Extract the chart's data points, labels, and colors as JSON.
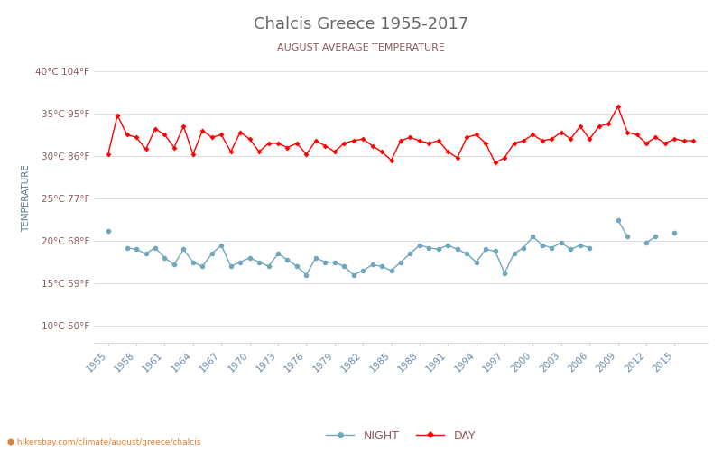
{
  "title": "Chalcis Greece 1955-2017",
  "subtitle": "AUGUST AVERAGE TEMPERATURE",
  "ylabel": "TEMPERATURE",
  "xlabel_url": "hikersbay.com/climate/august/greece/chalcis",
  "years": [
    1955,
    1956,
    1957,
    1958,
    1959,
    1960,
    1961,
    1962,
    1963,
    1964,
    1965,
    1966,
    1967,
    1968,
    1969,
    1970,
    1971,
    1972,
    1973,
    1974,
    1975,
    1976,
    1977,
    1978,
    1979,
    1980,
    1981,
    1982,
    1983,
    1984,
    1985,
    1986,
    1987,
    1988,
    1989,
    1990,
    1991,
    1992,
    1993,
    1994,
    1995,
    1996,
    1997,
    1998,
    1999,
    2000,
    2001,
    2002,
    2003,
    2004,
    2005,
    2006,
    2007,
    2008,
    2009,
    2010,
    2011,
    2012,
    2013,
    2014,
    2015,
    2016,
    2017
  ],
  "day_temps": [
    30.2,
    34.8,
    32.5,
    32.2,
    30.8,
    33.2,
    32.5,
    31.0,
    33.5,
    30.2,
    33.0,
    32.2,
    32.5,
    30.5,
    32.8,
    32.0,
    30.5,
    31.5,
    31.5,
    31.0,
    31.5,
    30.2,
    31.8,
    31.2,
    30.5,
    31.5,
    31.8,
    32.0,
    31.2,
    30.5,
    29.5,
    31.8,
    32.2,
    31.8,
    31.5,
    31.8,
    30.5,
    29.8,
    32.2,
    32.5,
    31.5,
    29.2,
    29.8,
    31.5,
    31.8,
    32.5,
    31.8,
    32.0,
    32.8,
    32.0,
    33.5,
    32.0,
    33.5,
    33.8,
    35.8,
    32.8,
    32.5,
    31.5,
    32.2,
    31.5,
    32.0,
    31.8,
    31.8
  ],
  "night_temps": [
    21.2,
    null,
    19.2,
    19.0,
    18.5,
    19.2,
    18.0,
    17.2,
    19.0,
    17.5,
    17.0,
    18.5,
    19.5,
    17.0,
    17.5,
    18.0,
    17.5,
    17.0,
    18.5,
    17.8,
    17.0,
    16.0,
    18.0,
    17.5,
    17.5,
    17.0,
    16.0,
    16.5,
    17.2,
    17.0,
    16.5,
    17.5,
    18.5,
    19.5,
    19.2,
    19.0,
    19.5,
    19.0,
    18.5,
    17.5,
    19.0,
    18.8,
    16.2,
    18.5,
    19.2,
    20.5,
    19.5,
    19.2,
    19.8,
    19.0,
    19.5,
    19.2,
    null,
    null,
    22.5,
    20.5,
    null,
    19.8,
    20.5,
    null,
    21.0,
    null,
    null
  ],
  "day_color": "#ff0000",
  "night_color": "#6fa8bc",
  "title_color": "#666666",
  "subtitle_color": "#8b5a5a",
  "axis_label_color": "#5a7a8a",
  "tick_label_color": "#8b5a5a",
  "xtick_label_color": "#6a8aaa",
  "grid_color": "#d8d8d8",
  "background_color": "#ffffff",
  "yticks_c": [
    10,
    15,
    20,
    25,
    30,
    35,
    40
  ],
  "yticks_f": [
    50,
    59,
    68,
    77,
    86,
    95,
    104
  ],
  "ylim": [
    8,
    42
  ],
  "xtick_years": [
    1955,
    1958,
    1961,
    1964,
    1967,
    1970,
    1973,
    1976,
    1979,
    1982,
    1985,
    1988,
    1991,
    1994,
    1997,
    2000,
    2003,
    2006,
    2009,
    2012,
    2015
  ],
  "legend_night_label": "NIGHT",
  "legend_day_label": "DAY"
}
